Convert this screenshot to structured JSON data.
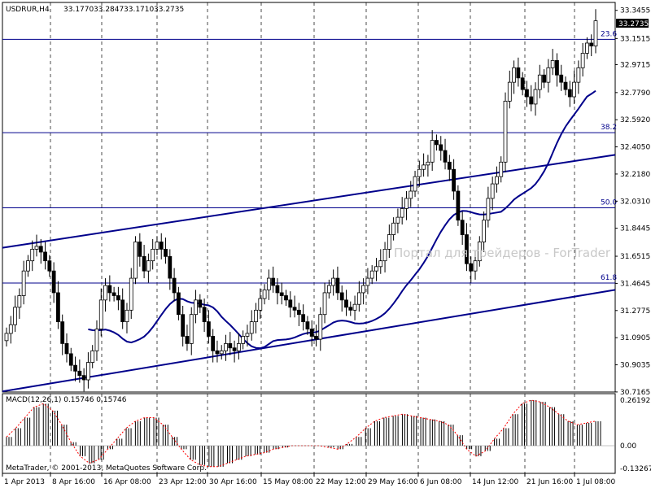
{
  "window": {
    "symbol_header": "USDRUR,H4",
    "ohlc": [
      "33.1770",
      "33.2847",
      "33.1710",
      "33.2735"
    ],
    "macd_header": "MACD(12,26,1) 0.15746 0.15746",
    "copyright": "MetaTrader, © 2001-2013, MetaQuotes Software Corp.",
    "watermark": "Портал для трейдеров - ForTrader"
  },
  "colors": {
    "background": "#ffffff",
    "candle": "#000000",
    "trendline": "#00008b",
    "fib_line": "#00008b",
    "moving_average": "#00008b",
    "macd_hist": "#000000",
    "signal_line": "#ff0000",
    "price_badge": "#000000",
    "grid": "#000000"
  },
  "price_axis": {
    "ticks": [
      "33.3455",
      "33.1515",
      "32.9715",
      "32.7790",
      "32.5920",
      "32.4050",
      "32.2180",
      "32.0310",
      "31.8445",
      "31.6515",
      "31.4645",
      "31.2775",
      "31.0905",
      "30.9035",
      "30.7165"
    ],
    "current_price": "33.2735",
    "ymin": 30.716,
    "ymax": 33.4
  },
  "macd_axis": {
    "ticks": [
      "0.26192",
      "0.00",
      "-0.13267"
    ]
  },
  "time_axis": {
    "labels": [
      "1 Apr 2013",
      "8 Apr 16:00",
      "16 Apr 08:00",
      "23 Apr 12:00",
      "30 Apr 16:00",
      "15 May 08:00",
      "22 May 12:00",
      "29 May 16:00",
      "6 Jun 08:00",
      "14 Jun 12:00",
      "21 Jun 16:00",
      "1 Jul 08:00"
    ]
  },
  "fibonacci": [
    {
      "label": "23.6",
      "price": 33.146
    },
    {
      "label": "38.2",
      "price": 32.503
    },
    {
      "label": "50.0",
      "price": 31.985
    },
    {
      "label": "61.8",
      "price": 31.467
    }
  ],
  "chart_data": {
    "type": "candlestick",
    "series_closes": [
      31.12,
      31.18,
      31.3,
      31.38,
      31.55,
      31.62,
      31.7,
      31.72,
      31.68,
      31.62,
      31.55,
      31.4,
      31.2,
      31.05,
      30.98,
      30.9,
      30.86,
      30.83,
      30.8,
      30.92,
      31.0,
      31.15,
      31.35,
      31.45,
      31.4,
      31.38,
      31.35,
      31.2,
      31.28,
      31.5,
      31.75,
      31.65,
      31.55,
      31.62,
      31.7,
      31.75,
      31.7,
      31.65,
      31.5,
      31.4,
      31.25,
      31.1,
      31.05,
      31.25,
      31.35,
      31.3,
      31.2,
      31.1,
      31.0,
      30.98,
      31.0,
      31.05,
      31.02,
      31.0,
      31.05,
      31.1,
      31.12,
      31.2,
      31.28,
      31.36,
      31.42,
      31.5,
      31.45,
      31.4,
      31.38,
      31.35,
      31.3,
      31.28,
      31.25,
      31.2,
      31.15,
      31.1,
      31.08,
      31.25,
      31.4,
      31.45,
      31.5,
      31.4,
      31.35,
      31.3,
      31.28,
      31.32,
      31.4,
      31.45,
      31.5,
      31.55,
      31.58,
      31.62,
      31.7,
      31.8,
      31.88,
      31.92,
      31.98,
      32.05,
      32.1,
      32.2,
      32.25,
      32.28,
      32.3,
      32.45,
      32.42,
      32.38,
      32.3,
      32.25,
      32.1,
      31.9,
      31.8,
      31.6,
      31.55,
      31.62,
      31.75,
      31.9,
      32.05,
      32.15,
      32.2,
      32.3,
      32.72,
      32.85,
      32.95,
      32.88,
      32.8,
      32.75,
      32.7,
      32.8,
      32.9,
      32.85,
      32.95,
      33.0,
      32.9,
      32.85,
      32.8,
      32.75,
      32.85,
      32.95,
      33.05,
      33.12,
      33.1,
      33.2735
    ],
    "trendlines": [
      {
        "name": "upper-channel",
        "from": {
          "x": "1 Apr 2013",
          "price": 31.71
        },
        "to": {
          "x": "right edge",
          "price": 32.35
        }
      },
      {
        "name": "lower-channel",
        "from": {
          "x": "1 Apr 2013",
          "price": 30.72
        },
        "to": {
          "x": "right edge",
          "price": 31.42
        }
      }
    ],
    "macd_hist_levels": [
      0.05,
      0.1,
      0.16,
      0.22,
      0.24,
      0.2,
      0.12,
      0.02,
      -0.06,
      -0.1,
      -0.08,
      -0.02,
      0.04,
      0.1,
      0.14,
      0.16,
      0.16,
      0.12,
      0.05,
      -0.02,
      -0.08,
      -0.11,
      -0.12,
      -0.12,
      -0.1,
      -0.08,
      -0.06,
      -0.05,
      -0.04,
      -0.02,
      -0.01,
      0.0,
      0.0,
      0.0,
      0.0,
      -0.01,
      -0.02,
      0.01,
      0.05,
      0.1,
      0.14,
      0.16,
      0.17,
      0.18,
      0.17,
      0.16,
      0.15,
      0.14,
      0.12,
      0.06,
      -0.02,
      -0.06,
      -0.03,
      0.04,
      0.1,
      0.18,
      0.24,
      0.26,
      0.25,
      0.22,
      0.18,
      0.14,
      0.12,
      0.13,
      0.14
    ]
  }
}
